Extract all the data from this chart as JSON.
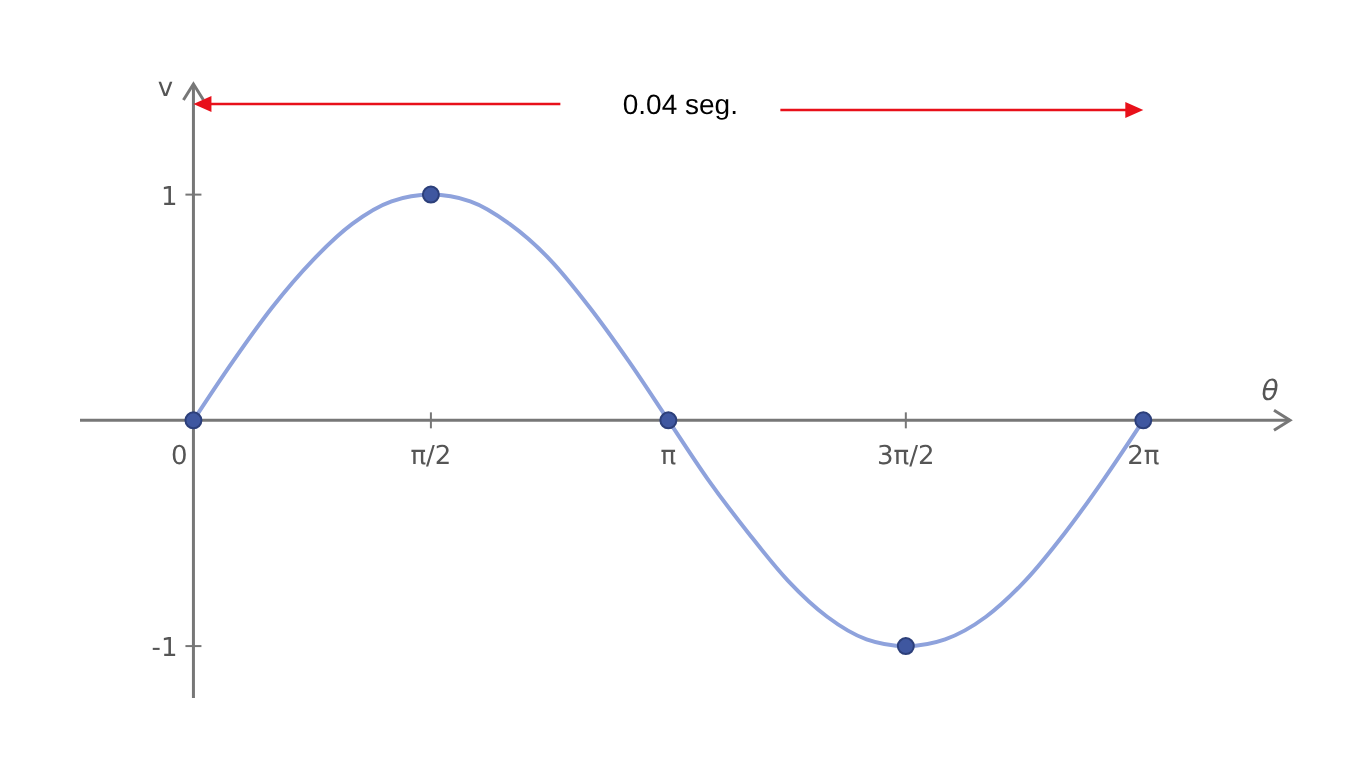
{
  "chart_data": {
    "type": "line",
    "xlabel": "θ",
    "ylabel": "v",
    "xlim": [
      -0.75,
      7.25
    ],
    "ylim": [
      -1.23,
      1.49
    ],
    "xticks": [
      0,
      {
        "value": 1.57,
        "label": "π/2"
      },
      {
        "value": 3.14,
        "label": "π"
      },
      {
        "value": 4.71,
        "label": "3π/2"
      },
      {
        "value": 6.28,
        "label": "2π"
      }
    ],
    "yticks": [
      -1,
      1
    ],
    "grid": false,
    "series": [
      {
        "color": "#8ea2dc",
        "line_style": "solid",
        "x": [
          0,
          0.26,
          0.52,
          0.79,
          1.05,
          1.31,
          1.57,
          1.83,
          2.09,
          2.36,
          2.62,
          2.88,
          3.14,
          3.4,
          3.67,
          3.93,
          4.19,
          4.45,
          4.71,
          4.97,
          5.24,
          5.5,
          5.76,
          6.02,
          6.28
        ],
        "values": [
          0,
          0.26,
          0.5,
          0.71,
          0.87,
          0.97,
          1,
          0.97,
          0.87,
          0.71,
          0.5,
          0.26,
          0,
          -0.26,
          -0.5,
          -0.71,
          -0.87,
          -0.97,
          -1,
          -0.97,
          -0.87,
          -0.71,
          -0.5,
          -0.26,
          0
        ]
      },
      {
        "type": "scatter",
        "color": "#3f57a0",
        "marker": "circle",
        "x": [
          0,
          1.57,
          3.14,
          4.71,
          6.28
        ],
        "values": [
          0,
          1,
          0,
          -1,
          0
        ]
      }
    ],
    "annotations": [
      "0.04 seg."
    ]
  }
}
